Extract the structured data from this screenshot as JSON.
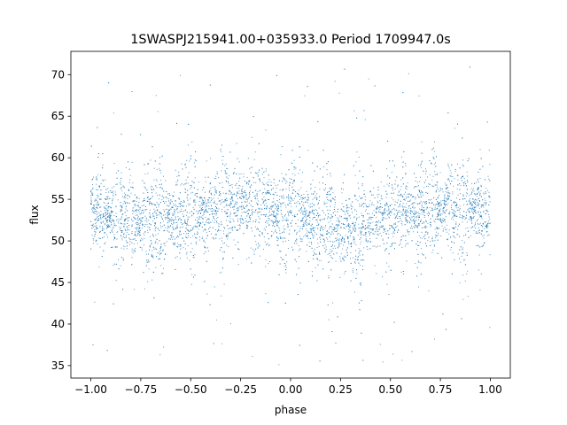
{
  "chart_data": {
    "type": "scatter",
    "title": "1SWASPJ215941.00+035933.0 Period 1709947.0s",
    "xlabel": "phase",
    "ylabel": "flux",
    "xlim": [
      -1.1,
      1.1
    ],
    "ylim": [
      33.5,
      72.8
    ],
    "xticks": [
      -1.0,
      -0.75,
      -0.5,
      -0.25,
      0.0,
      0.25,
      0.5,
      0.75,
      1.0
    ],
    "xtick_labels": [
      "−1.00",
      "−0.75",
      "−0.50",
      "−0.25",
      "0.00",
      "0.25",
      "0.50",
      "0.75",
      "1.00"
    ],
    "yticks": [
      35,
      40,
      45,
      50,
      55,
      60,
      65,
      70
    ],
    "ytick_labels": [
      "35",
      "40",
      "45",
      "50",
      "55",
      "60",
      "65",
      "70"
    ],
    "grid": false,
    "series": [
      {
        "color": "#1f77b4",
        "marker_size": "tiny",
        "x_range": [
          -1.0,
          1.0
        ],
        "y_core_range": [
          46,
          60
        ],
        "y_full_range": [
          35,
          71
        ],
        "approx_center": 53,
        "profile": [
          {
            "phase": -1.0,
            "center": 53.5
          },
          {
            "phase": -0.75,
            "center": 52.5
          },
          {
            "phase": -0.5,
            "center": 53.0
          },
          {
            "phase": -0.25,
            "center": 54.5
          },
          {
            "phase": 0.0,
            "center": 53.0
          },
          {
            "phase": 0.25,
            "center": 51.5
          },
          {
            "phase": 0.5,
            "center": 53.0
          },
          {
            "phase": 0.75,
            "center": 54.0
          },
          {
            "phase": 1.0,
            "center": 53.5
          }
        ]
      }
    ]
  }
}
